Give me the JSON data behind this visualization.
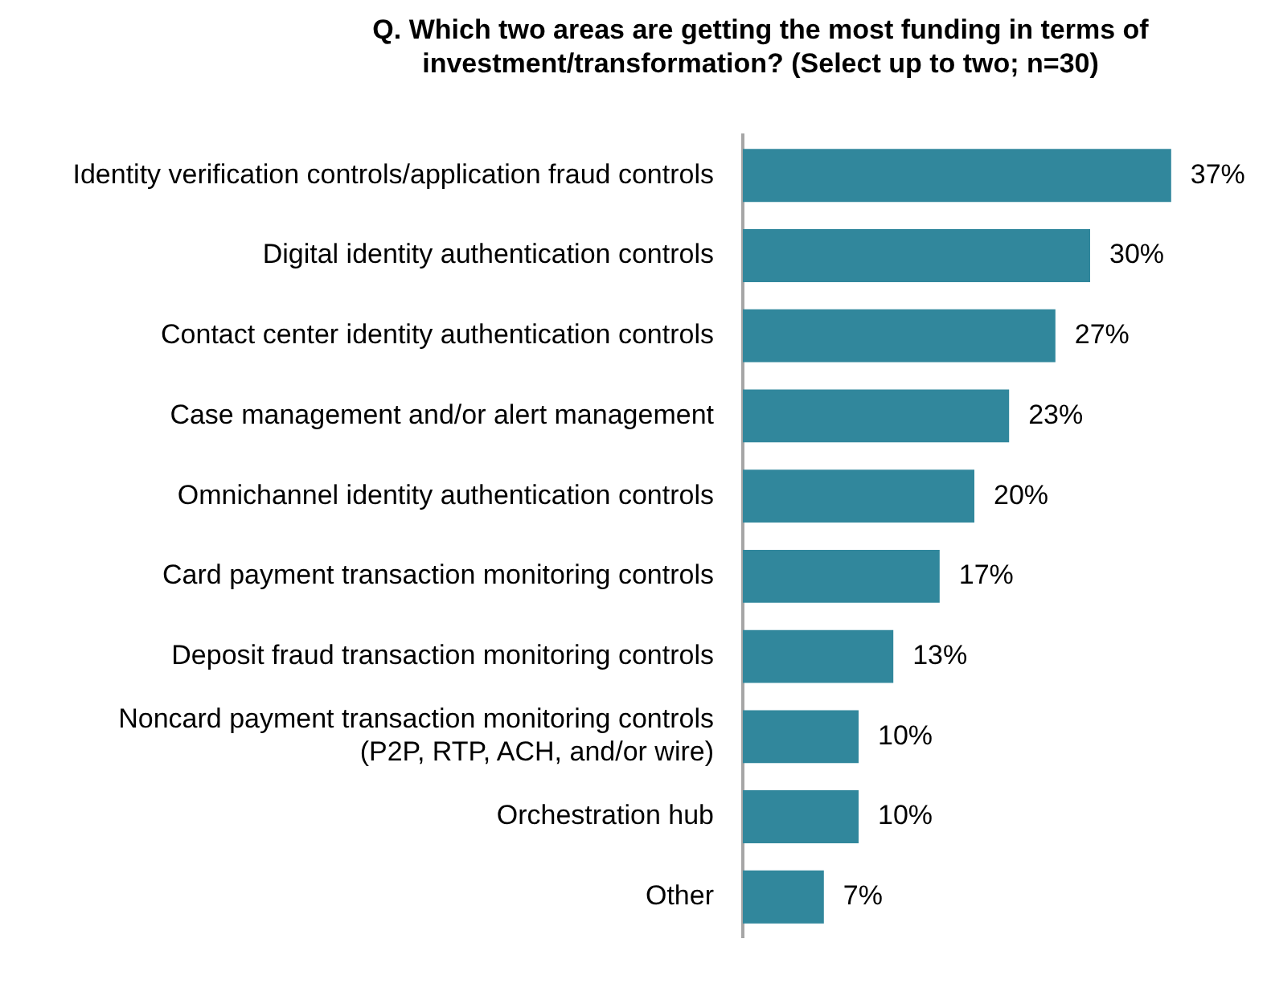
{
  "chart_data": {
    "type": "bar",
    "orientation": "horizontal",
    "title": "Q. Which two areas are getting the most funding in terms of investment/transformation? (Select up to two; n=30)",
    "categories": [
      "Identity verification controls/application fraud controls",
      "Digital identity authentication controls",
      "Contact center identity authentication controls",
      "Case management and/or alert management",
      "Omnichannel identity authentication controls",
      "Card payment transaction monitoring controls",
      "Deposit fraud transaction monitoring controls",
      "Noncard payment transaction monitoring controls (P2P, RTP, ACH, and/or wire)",
      "Orchestration hub",
      "Other"
    ],
    "values": [
      37,
      30,
      27,
      23,
      20,
      17,
      13,
      10,
      10,
      7
    ],
    "value_labels": [
      "37%",
      "30%",
      "27%",
      "23%",
      "20%",
      "17%",
      "13%",
      "10%",
      "10%",
      "7%"
    ],
    "color": "#31879c",
    "legend": false
  }
}
